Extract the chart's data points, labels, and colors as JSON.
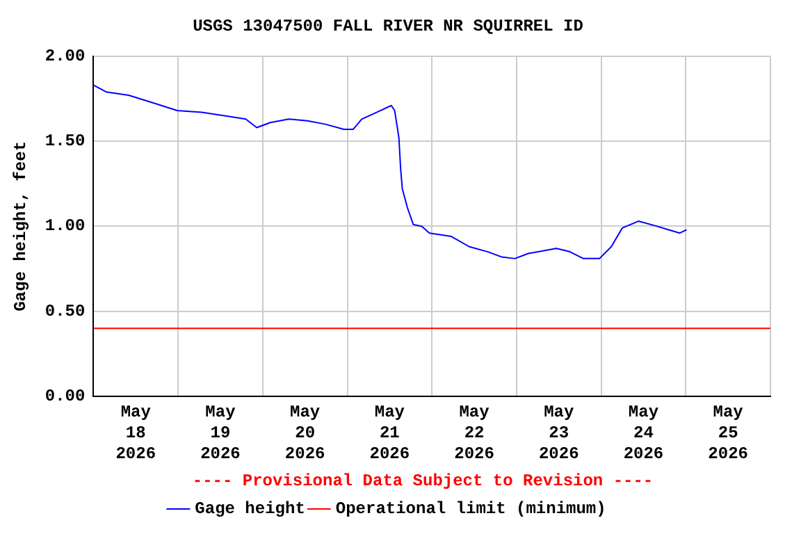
{
  "chart_data": {
    "type": "line",
    "title": "USGS 13047500 FALL RIVER NR SQUIRREL ID",
    "ylabel": "Gage height, feet",
    "annotations": [
      "---- Provisional Data Subject to Revision ----"
    ],
    "xlim": [
      "2026-05-18T00:00",
      "2026-05-26T00:00"
    ],
    "xticks": [
      {
        "value": "2026-05-18T00:00",
        "label": null
      },
      {
        "value": "2026-05-18T12:00",
        "label": "May\n18\n2026"
      },
      {
        "value": "2026-05-19T00:00",
        "label": null
      },
      {
        "value": "2026-05-19T12:00",
        "label": "May\n19\n2026"
      },
      {
        "value": "2026-05-20T00:00",
        "label": null
      },
      {
        "value": "2026-05-20T12:00",
        "label": "May\n20\n2026"
      },
      {
        "value": "2026-05-21T00:00",
        "label": null
      },
      {
        "value": "2026-05-21T12:00",
        "label": "May\n21\n2026"
      },
      {
        "value": "2026-05-22T00:00",
        "label": null
      },
      {
        "value": "2026-05-22T12:00",
        "label": "May\n22\n2026"
      },
      {
        "value": "2026-05-23T00:00",
        "label": null
      },
      {
        "value": "2026-05-23T12:00",
        "label": "May\n23\n2026"
      },
      {
        "value": "2026-05-24T00:00",
        "label": null
      },
      {
        "value": "2026-05-24T12:00",
        "label": "May\n24\n2026"
      },
      {
        "value": "2026-05-25T00:00",
        "label": null
      },
      {
        "value": "2026-05-25T12:00",
        "label": "May\n25\n2026"
      },
      {
        "value": "2026-05-26T00:00",
        "label": null
      }
    ],
    "ylim": [
      0,
      2
    ],
    "yticks": [
      {
        "value": 0,
        "label": "0.00"
      },
      {
        "value": 0.5,
        "label": "0.50"
      },
      {
        "value": 1,
        "label": "1.00"
      },
      {
        "value": 1.5,
        "label": "1.50"
      },
      {
        "value": 2,
        "label": "2.00"
      }
    ],
    "grid": true,
    "legend": "bottom",
    "marker": "none",
    "line_style": "solid",
    "x": [
      "2026-05-18T00:00",
      "2026-05-18T03:36",
      "2026-05-18T10:00",
      "2026-05-18T17:45",
      "2026-05-18T23:45",
      "2026-05-19T06:43",
      "2026-05-19T13:12",
      "2026-05-19T19:12",
      "2026-05-19T22:19",
      "2026-05-20T02:10",
      "2026-05-20T07:26",
      "2026-05-20T12:43",
      "2026-05-20T17:45",
      "2026-05-20T23:02",
      "2026-05-21T01:41",
      "2026-05-21T04:05",
      "2026-05-21T09:22",
      "2026-05-21T12:29",
      "2026-05-21T13:26",
      "2026-05-21T14:38",
      "2026-05-21T15:07",
      "2026-05-21T15:36",
      "2026-05-21T17:02",
      "2026-05-21T18:43",
      "2026-05-21T21:07",
      "2026-05-21T23:17",
      "2026-05-22T05:31",
      "2026-05-22T10:34",
      "2026-05-22T15:50",
      "2026-05-22T19:41",
      "2026-05-22T23:31",
      "2026-05-23T03:22",
      "2026-05-23T11:17",
      "2026-05-23T15:07",
      "2026-05-23T18:58",
      "2026-05-23T23:31",
      "2026-05-24T02:53",
      "2026-05-24T06:00",
      "2026-05-24T10:34",
      "2026-05-24T15:50",
      "2026-05-24T18:58",
      "2026-05-24T22:19",
      "2026-05-25T00:14"
    ],
    "series": [
      {
        "name": "Gage height",
        "color": "#0000ff",
        "values": [
          1.83,
          1.79,
          1.77,
          1.72,
          1.68,
          1.67,
          1.65,
          1.63,
          1.58,
          1.61,
          1.63,
          1.62,
          1.6,
          1.57,
          1.57,
          1.63,
          1.68,
          1.71,
          1.68,
          1.52,
          1.34,
          1.22,
          1.11,
          1.01,
          1.0,
          0.96,
          0.94,
          0.88,
          0.85,
          0.82,
          0.81,
          0.84,
          0.87,
          0.85,
          0.81,
          0.81,
          0.88,
          0.99,
          1.03,
          1.0,
          0.98,
          0.96,
          0.98
        ]
      }
    ],
    "ref_lines": [
      {
        "axis": "y",
        "value": 0.4,
        "label": "Operational limit (minimum)",
        "color": "#ff0000"
      }
    ]
  }
}
